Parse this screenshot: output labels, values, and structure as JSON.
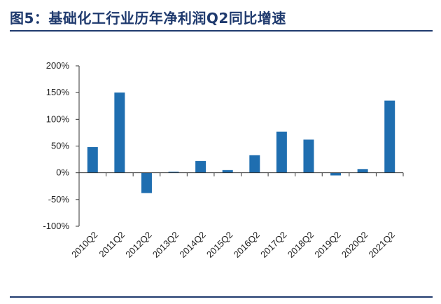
{
  "page": {
    "title": "图5：基础化工行业历年净利润Q2同比增速"
  },
  "colors": {
    "bar": "#1f6eb0",
    "title": "#1f3a6e",
    "axis": "#333333"
  },
  "chart_data": {
    "type": "bar",
    "title": "",
    "xlabel": "",
    "ylabel": "",
    "ylim": [
      -100,
      200
    ],
    "yticks": [
      -100,
      -50,
      0,
      50,
      100,
      150,
      200
    ],
    "ytick_labels": [
      "-100%",
      "-50%",
      "0%",
      "50%",
      "100%",
      "150%",
      "200%"
    ],
    "grid": false,
    "legend": "none",
    "categories": [
      "2010Q2",
      "2011Q2",
      "2012Q2",
      "2013Q2",
      "2014Q2",
      "2015Q2",
      "2016Q2",
      "2017Q2",
      "2018Q2",
      "2019Q2",
      "2020Q2",
      "2021Q2"
    ],
    "values": [
      48,
      150,
      -38,
      2,
      22,
      5,
      33,
      77,
      62,
      -5,
      7,
      135
    ]
  }
}
